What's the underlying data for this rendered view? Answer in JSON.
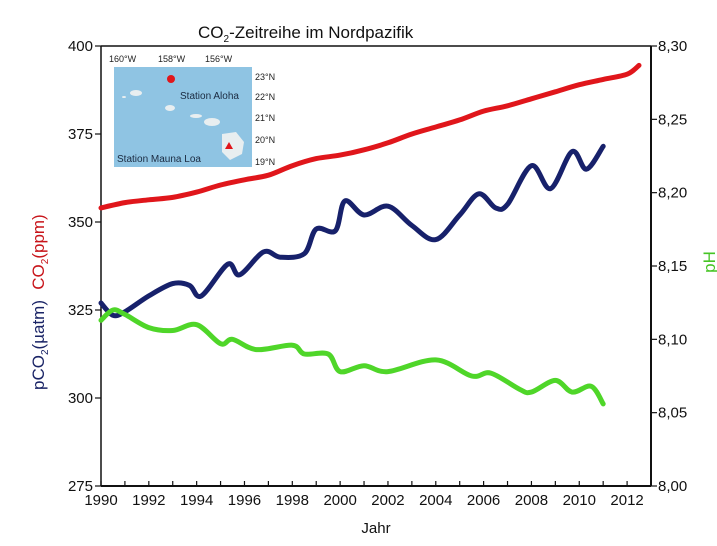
{
  "chart_data": {
    "type": "line",
    "title": {
      "main": "CO",
      "sub": "2",
      "rest": "-Zeitreihe im Nordpazifik"
    },
    "xlabel": "Jahr",
    "ylabel_left": {
      "co2": {
        "main": "CO",
        "sub": "2",
        "rest": "(ppm)"
      },
      "pco2": {
        "main": "pCO",
        "sub": "2",
        "rest": "(µatm)"
      }
    },
    "ylabel_right": "pH",
    "xlim": [
      1990,
      2013
    ],
    "ylim_left": [
      275,
      400
    ],
    "ylim_right": [
      8.0,
      8.3
    ],
    "x_ticks": [
      "1990",
      "1992",
      "1994",
      "1996",
      "1998",
      "2000",
      "2002",
      "2004",
      "2006",
      "2008",
      "2010",
      "2012"
    ],
    "y_ticks_left": [
      "275",
      "300",
      "325",
      "350",
      "375",
      "400"
    ],
    "y_ticks_right": [
      "8,00",
      "8,05",
      "8,10",
      "8,15",
      "8,20",
      "8,25",
      "8,30"
    ],
    "colors": {
      "co2": "#e0161b",
      "pco2": "#17216b",
      "ph": "#4fd629",
      "co2_label": "#c8141a",
      "pco2_label": "#1a2466",
      "ph_label": "#46c424"
    },
    "series": [
      {
        "name": "CO2 (ppm) Mauna Loa",
        "axis": "left",
        "color": "#e0161b",
        "x": [
          1990,
          1991,
          1992,
          1993,
          1994,
          1995,
          1996,
          1997,
          1998,
          1999,
          2000,
          2001,
          2002,
          2003,
          2004,
          2005,
          2006,
          2007,
          2008,
          2009,
          2010,
          2011,
          2012,
          2012.5
        ],
        "y": [
          354,
          355.5,
          356.3,
          357,
          358.5,
          360.5,
          362,
          363.3,
          366,
          368,
          369,
          370.5,
          372.5,
          375,
          377,
          379,
          381.5,
          383,
          385,
          387,
          389,
          390.5,
          392,
          394.5
        ]
      },
      {
        "name": "pCO2 (µatm) Station Aloha",
        "axis": "left",
        "color": "#17216b",
        "x": [
          1990,
          1990.5,
          1991,
          1992,
          1993,
          1993.7,
          1994.2,
          1995.3,
          1995.8,
          1996.8,
          1997.5,
          1998.5,
          1999,
          1999.8,
          2000.2,
          2001,
          2002,
          2003,
          2004,
          2005,
          2005.8,
          2006.5,
          2007,
          2008,
          2008.8,
          2009.7,
          2010.3,
          2011
        ],
        "y": [
          327,
          323.5,
          324.5,
          329,
          332.5,
          332,
          329,
          338,
          335,
          341.5,
          340,
          341,
          348,
          347.5,
          356,
          352,
          354.5,
          349,
          345,
          352,
          358,
          354,
          355,
          366,
          359.5,
          370,
          365,
          371.5
        ]
      },
      {
        "name": "pH",
        "axis": "right",
        "color": "#4fd629",
        "x": [
          1990,
          1990.5,
          1991,
          1992,
          1993,
          1994,
          1995,
          1995.5,
          1996.5,
          1998,
          1998.5,
          1999.5,
          2000,
          2001,
          2002,
          2004,
          2005.5,
          2006.3,
          2007.5,
          2008,
          2009,
          2009.7,
          2010.5,
          2011
        ],
        "y": [
          8.113,
          8.12,
          8.117,
          8.108,
          8.106,
          8.11,
          8.097,
          8.1,
          8.093,
          8.096,
          8.09,
          8.09,
          8.078,
          8.082,
          8.078,
          8.086,
          8.075,
          8.077,
          8.066,
          8.064,
          8.072,
          8.064,
          8.068,
          8.056
        ]
      }
    ],
    "inset": {
      "lon_labels": [
        "160°W",
        "158°W",
        "156°W"
      ],
      "lat_labels": [
        "23°N",
        "22°N",
        "21°N",
        "20°N",
        "19°N"
      ],
      "station_aloha": "Station Aloha",
      "station_mauna_loa": "Station Mauna Loa",
      "sea_color": "#8fc4e3"
    }
  }
}
